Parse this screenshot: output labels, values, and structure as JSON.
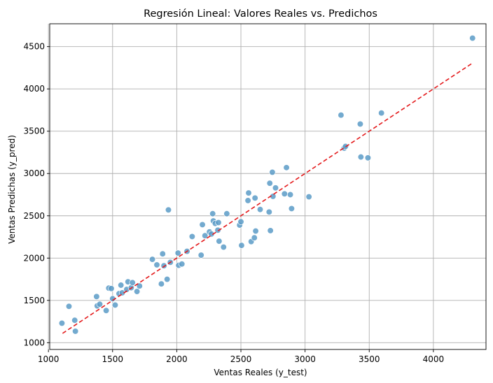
{
  "chart_data": {
    "type": "scatter",
    "title": "Regresión Lineal: Valores Reales vs. Predichos",
    "xlabel": "Ventas Reales (y_test)",
    "ylabel": "Ventas Predichas (y_pred)",
    "xlim": [
      1010,
      4410
    ],
    "ylim": [
      920,
      4770
    ],
    "xticks": [
      1000,
      1500,
      2000,
      2500,
      3000,
      3500,
      4000
    ],
    "yticks": [
      1000,
      1500,
      2000,
      2500,
      3000,
      3500,
      4000,
      4500
    ],
    "grid": true,
    "point_color": "#5b9bc7",
    "point_edge_color": "#ffffff",
    "line_color": "#e41a1c",
    "reference_line": {
      "x": [
        1110,
        4300
      ],
      "y": [
        1110,
        4300
      ],
      "style": "dashed"
    },
    "points": [
      {
        "x": 1105,
        "y": 1230
      },
      {
        "x": 1160,
        "y": 1430
      },
      {
        "x": 1205,
        "y": 1265
      },
      {
        "x": 1210,
        "y": 1135
      },
      {
        "x": 1375,
        "y": 1545
      },
      {
        "x": 1380,
        "y": 1435
      },
      {
        "x": 1400,
        "y": 1455
      },
      {
        "x": 1450,
        "y": 1380
      },
      {
        "x": 1470,
        "y": 1645
      },
      {
        "x": 1490,
        "y": 1640
      },
      {
        "x": 1500,
        "y": 1520
      },
      {
        "x": 1520,
        "y": 1445
      },
      {
        "x": 1550,
        "y": 1580
      },
      {
        "x": 1565,
        "y": 1680
      },
      {
        "x": 1575,
        "y": 1590
      },
      {
        "x": 1610,
        "y": 1630
      },
      {
        "x": 1620,
        "y": 1720
      },
      {
        "x": 1645,
        "y": 1650
      },
      {
        "x": 1655,
        "y": 1710
      },
      {
        "x": 1690,
        "y": 1605
      },
      {
        "x": 1710,
        "y": 1670
      },
      {
        "x": 1810,
        "y": 1985
      },
      {
        "x": 1845,
        "y": 1920
      },
      {
        "x": 1880,
        "y": 1695
      },
      {
        "x": 1890,
        "y": 2050
      },
      {
        "x": 1900,
        "y": 1910
      },
      {
        "x": 1925,
        "y": 1750
      },
      {
        "x": 1935,
        "y": 2570
      },
      {
        "x": 1950,
        "y": 1950
      },
      {
        "x": 2010,
        "y": 2060
      },
      {
        "x": 2015,
        "y": 1915
      },
      {
        "x": 2040,
        "y": 1930
      },
      {
        "x": 2080,
        "y": 2080
      },
      {
        "x": 2120,
        "y": 2255
      },
      {
        "x": 2190,
        "y": 2035
      },
      {
        "x": 2200,
        "y": 2395
      },
      {
        "x": 2220,
        "y": 2265
      },
      {
        "x": 2255,
        "y": 2310
      },
      {
        "x": 2270,
        "y": 2285
      },
      {
        "x": 2280,
        "y": 2525
      },
      {
        "x": 2285,
        "y": 2440
      },
      {
        "x": 2300,
        "y": 2410
      },
      {
        "x": 2320,
        "y": 2330
      },
      {
        "x": 2325,
        "y": 2420
      },
      {
        "x": 2330,
        "y": 2200
      },
      {
        "x": 2365,
        "y": 2130
      },
      {
        "x": 2390,
        "y": 2525
      },
      {
        "x": 2490,
        "y": 2390
      },
      {
        "x": 2500,
        "y": 2430
      },
      {
        "x": 2505,
        "y": 2150
      },
      {
        "x": 2555,
        "y": 2680
      },
      {
        "x": 2560,
        "y": 2770
      },
      {
        "x": 2580,
        "y": 2195
      },
      {
        "x": 2605,
        "y": 2240
      },
      {
        "x": 2610,
        "y": 2710
      },
      {
        "x": 2615,
        "y": 2320
      },
      {
        "x": 2650,
        "y": 2575
      },
      {
        "x": 2720,
        "y": 2545
      },
      {
        "x": 2725,
        "y": 2885
      },
      {
        "x": 2730,
        "y": 2325
      },
      {
        "x": 2745,
        "y": 3015
      },
      {
        "x": 2750,
        "y": 2730
      },
      {
        "x": 2770,
        "y": 2830
      },
      {
        "x": 2840,
        "y": 2760
      },
      {
        "x": 2855,
        "y": 3070
      },
      {
        "x": 2885,
        "y": 2750
      },
      {
        "x": 2895,
        "y": 2585
      },
      {
        "x": 3030,
        "y": 2725
      },
      {
        "x": 3280,
        "y": 3690
      },
      {
        "x": 3305,
        "y": 3300
      },
      {
        "x": 3315,
        "y": 3320
      },
      {
        "x": 3430,
        "y": 3585
      },
      {
        "x": 3435,
        "y": 3195
      },
      {
        "x": 3490,
        "y": 3185
      },
      {
        "x": 3595,
        "y": 3715
      },
      {
        "x": 4305,
        "y": 4600
      }
    ]
  }
}
